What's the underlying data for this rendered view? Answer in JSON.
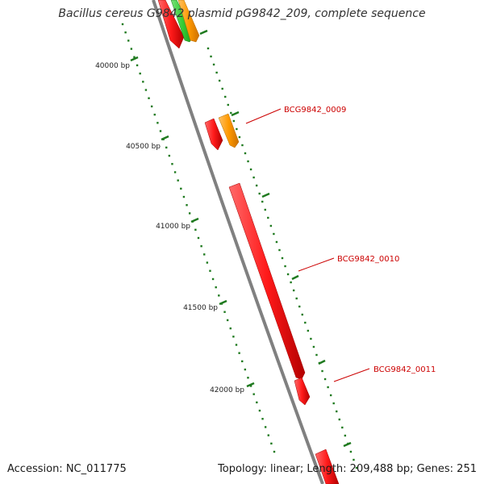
{
  "title": "Bacillus cereus G9842 plasmid pG9842_209, complete sequence",
  "footer": {
    "accession": "Accession: NC_011775",
    "summary": "Topology: linear; Length: 209,488 bp; Genes: 251"
  },
  "scale_ticks": [
    {
      "label": "40000 bp"
    },
    {
      "label": "40500 bp"
    },
    {
      "label": "41000 bp"
    },
    {
      "label": "41500 bp"
    },
    {
      "label": "42000 bp"
    }
  ],
  "gene_labels": [
    {
      "label": "BCG9842_0009",
      "color": "#cc0000"
    },
    {
      "label": "BCG9842_0010",
      "color": "#cc0000"
    },
    {
      "label": "BCG9842_0011",
      "color": "#cc0000"
    }
  ],
  "colors": {
    "backbone": "#808080",
    "gene_red": "#ff1a1a",
    "gene_orange": "#ff9900",
    "gene_green": "#33cc33",
    "tick_green": "#1f7a1f",
    "label_red": "#cc0000"
  }
}
